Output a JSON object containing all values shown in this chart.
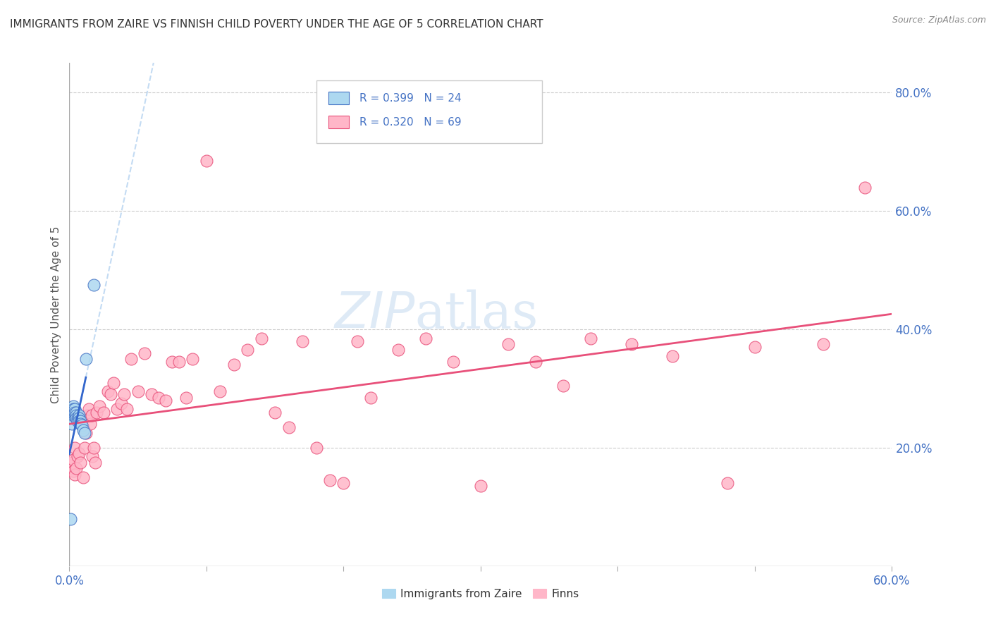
{
  "title": "IMMIGRANTS FROM ZAIRE VS FINNISH CHILD POVERTY UNDER THE AGE OF 5 CORRELATION CHART",
  "source": "Source: ZipAtlas.com",
  "ylabel": "Child Poverty Under the Age of 5",
  "xlim": [
    0.0,
    0.6
  ],
  "ylim": [
    0.0,
    0.85
  ],
  "xtick_positions": [
    0.0,
    0.1,
    0.2,
    0.3,
    0.4,
    0.5,
    0.6
  ],
  "xtick_labels_show": [
    "0.0%",
    "",
    "",
    "",
    "",
    "",
    "60.0%"
  ],
  "yticks_right": [
    0.2,
    0.4,
    0.6,
    0.8
  ],
  "ytick_labels_right": [
    "20.0%",
    "40.0%",
    "60.0%",
    "80.0%"
  ],
  "legend_blue_r": "R = 0.399",
  "legend_blue_n": "N = 24",
  "legend_pink_r": "R = 0.320",
  "legend_pink_n": "N = 69",
  "legend_label_blue": "Immigrants from Zaire",
  "legend_label_pink": "Finns",
  "color_blue": "#ADD8F0",
  "color_pink": "#FFB6C8",
  "color_pink_line": "#E8507A",
  "color_blue_line_solid": "#3366CC",
  "color_blue_line_dashed": "#AACCEE",
  "color_axis_labels": "#4472C4",
  "watermark_zip": "ZIP",
  "watermark_atlas": "atlas",
  "blue_dots_x": [
    0.001,
    0.002,
    0.002,
    0.003,
    0.003,
    0.003,
    0.004,
    0.004,
    0.004,
    0.005,
    0.005,
    0.005,
    0.006,
    0.006,
    0.007,
    0.007,
    0.007,
    0.008,
    0.008,
    0.009,
    0.01,
    0.011,
    0.012,
    0.018
  ],
  "blue_dots_y": [
    0.08,
    0.26,
    0.24,
    0.27,
    0.265,
    0.255,
    0.265,
    0.255,
    0.26,
    0.26,
    0.255,
    0.25,
    0.25,
    0.245,
    0.255,
    0.25,
    0.245,
    0.245,
    0.24,
    0.238,
    0.23,
    0.225,
    0.35,
    0.475
  ],
  "pink_dots_x": [
    0.001,
    0.002,
    0.002,
    0.003,
    0.003,
    0.004,
    0.004,
    0.005,
    0.006,
    0.007,
    0.008,
    0.01,
    0.01,
    0.011,
    0.012,
    0.013,
    0.014,
    0.015,
    0.016,
    0.017,
    0.018,
    0.019,
    0.02,
    0.022,
    0.025,
    0.028,
    0.03,
    0.032,
    0.035,
    0.038,
    0.04,
    0.042,
    0.045,
    0.05,
    0.055,
    0.06,
    0.065,
    0.07,
    0.075,
    0.08,
    0.085,
    0.09,
    0.1,
    0.11,
    0.12,
    0.13,
    0.14,
    0.15,
    0.16,
    0.17,
    0.18,
    0.19,
    0.2,
    0.21,
    0.22,
    0.24,
    0.26,
    0.28,
    0.3,
    0.32,
    0.34,
    0.36,
    0.38,
    0.41,
    0.44,
    0.48,
    0.5,
    0.55,
    0.58
  ],
  "pink_dots_y": [
    0.17,
    0.165,
    0.175,
    0.18,
    0.16,
    0.2,
    0.155,
    0.165,
    0.185,
    0.19,
    0.175,
    0.235,
    0.15,
    0.2,
    0.225,
    0.255,
    0.265,
    0.24,
    0.255,
    0.185,
    0.2,
    0.175,
    0.26,
    0.27,
    0.26,
    0.295,
    0.29,
    0.31,
    0.265,
    0.275,
    0.29,
    0.265,
    0.35,
    0.295,
    0.36,
    0.29,
    0.285,
    0.28,
    0.345,
    0.345,
    0.285,
    0.35,
    0.685,
    0.295,
    0.34,
    0.365,
    0.385,
    0.26,
    0.235,
    0.38,
    0.2,
    0.145,
    0.14,
    0.38,
    0.285,
    0.365,
    0.385,
    0.345,
    0.135,
    0.375,
    0.345,
    0.305,
    0.385,
    0.375,
    0.355,
    0.14,
    0.37,
    0.375,
    0.64
  ]
}
